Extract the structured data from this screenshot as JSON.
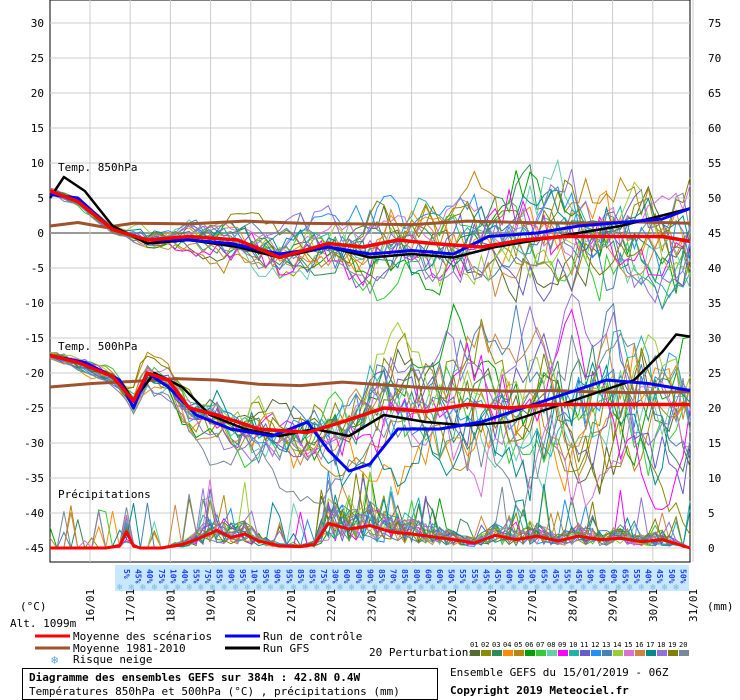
{
  "chart_data": {
    "type": "line",
    "title": "Diagramme des ensembles GEFS sur 384h : 42.8N 0.4W",
    "subtitle": "Températures 850hPa et 500hPa (°C) , précipitations (mm)",
    "run_info": "Ensemble GEFS du 15/01/2019 - 06Z",
    "copyright": "Copyright 2019 Meteociel.fr",
    "left_axis_unit": "(°C)",
    "right_axis_unit": "(mm)",
    "altitude": "Alt. 1099m",
    "left_ticks": [
      "30",
      "25",
      "20",
      "15",
      "10",
      "5",
      "0",
      "-5",
      "-10",
      "-15",
      "-20",
      "-25",
      "-30",
      "-35",
      "-40",
      "-45"
    ],
    "right_ticks": [
      "75",
      "70",
      "65",
      "60",
      "55",
      "50",
      "45",
      "40",
      "35",
      "30",
      "25",
      "20",
      "15",
      "10",
      "5",
      "0"
    ],
    "panel_labels": {
      "t850": "Temp. 850hPa",
      "t500": "Temp. 500hPa",
      "precip": "Précipitations"
    },
    "dates": [
      "16/01",
      "17/01",
      "18/01",
      "19/01",
      "20/01",
      "21/01",
      "22/01",
      "23/01",
      "24/01",
      "25/01",
      "26/01",
      "27/01",
      "28/01",
      "29/01",
      "30/01",
      "31/01"
    ],
    "snow_risk": [
      "5%",
      "45%",
      "40%",
      "75%",
      "10%",
      "40%",
      "55%",
      "75%",
      "85%",
      "90%",
      "95%",
      "10%",
      "95%",
      "90%",
      "95%",
      "85%",
      "85%",
      "75%",
      "30%",
      "60%",
      "90%",
      "90%",
      "85%",
      "70%",
      "85%",
      "80%",
      "60%",
      "60%",
      "50%",
      "55%",
      "55%",
      "45%",
      "45%",
      "60%",
      "50%",
      "50%",
      "65%",
      "45%",
      "55%",
      "45%",
      "50%",
      "60%",
      "60%",
      "65%",
      "55%",
      "40%",
      "45%",
      "50%",
      "50%"
    ],
    "legend": {
      "mean": "Moyenne des scénarios",
      "control": "Run de contrôle",
      "clim": "Moyenne 1981-2010",
      "gfs": "Run GFS",
      "snow": "Risque neige",
      "perturbations": "20 Perturbations",
      "pert_ids": [
        "01",
        "02",
        "03",
        "04",
        "05",
        "06",
        "07",
        "08",
        "09",
        "10",
        "11",
        "12",
        "13",
        "14",
        "15",
        "16",
        "17",
        "18",
        "19",
        "20"
      ]
    },
    "colors": {
      "mean": "#ff0000",
      "control": "#0000ff",
      "clim": "#a0522d",
      "gfs": "#000000",
      "snow": "#c8e8ff",
      "pert": [
        "#556b2f",
        "#8b8b00",
        "#2e8b57",
        "#ff8c00",
        "#b8860b",
        "#00a000",
        "#32cd32",
        "#66cdaa",
        "#ff00ff",
        "#20b2aa",
        "#6a5acd",
        "#1e90ff",
        "#4682b4",
        "#9acd32",
        "#da70d6",
        "#cd853f",
        "#008b8b",
        "#9370db",
        "#808000",
        "#778899"
      ]
    },
    "t850_mean": [
      [
        0,
        6
      ],
      [
        4,
        4.5
      ],
      [
        9,
        0.5
      ],
      [
        14,
        -1
      ],
      [
        20,
        -0.5
      ],
      [
        27,
        -1
      ],
      [
        33,
        -3.5
      ],
      [
        40,
        -1.5
      ],
      [
        45,
        -2
      ],
      [
        50,
        -1
      ],
      [
        55,
        -1.5
      ],
      [
        62,
        -2
      ],
      [
        68,
        -1
      ],
      [
        74,
        -0.5
      ],
      [
        80,
        -0.5
      ],
      [
        84,
        -0.5
      ],
      [
        88,
        -0.5
      ],
      [
        92,
        -1.2
      ]
    ],
    "t850_control": [
      [
        0,
        5.5
      ],
      [
        4,
        5
      ],
      [
        9,
        0.5
      ],
      [
        14,
        -1
      ],
      [
        20,
        -1
      ],
      [
        26,
        -1.5
      ],
      [
        33,
        -3
      ],
      [
        40,
        -2
      ],
      [
        46,
        -3
      ],
      [
        52,
        -2.5
      ],
      [
        58,
        -3
      ],
      [
        63,
        -0.5
      ],
      [
        70,
        0
      ],
      [
        76,
        1
      ],
      [
        82,
        1.5
      ],
      [
        88,
        2
      ],
      [
        92,
        3.5
      ]
    ],
    "t850_gfs": [
      [
        0,
        5
      ],
      [
        2,
        8
      ],
      [
        5,
        6
      ],
      [
        9,
        1
      ],
      [
        14,
        -1.5
      ],
      [
        20,
        -1
      ],
      [
        27,
        -2
      ],
      [
        33,
        -3.5
      ],
      [
        40,
        -2
      ],
      [
        46,
        -3.5
      ],
      [
        52,
        -3
      ],
      [
        58,
        -3.5
      ],
      [
        64,
        -2
      ],
      [
        70,
        -1
      ],
      [
        76,
        0
      ],
      [
        82,
        1
      ],
      [
        88,
        2.5
      ],
      [
        92,
        3.5
      ]
    ],
    "t850_clim": [
      [
        0,
        1
      ],
      [
        4,
        1.5
      ],
      [
        8,
        0.8
      ],
      [
        12,
        1.4
      ],
      [
        20,
        1.3
      ],
      [
        28,
        1.7
      ],
      [
        36,
        1.4
      ],
      [
        44,
        1.3
      ],
      [
        52,
        1.2
      ],
      [
        60,
        1.7
      ],
      [
        68,
        1.5
      ],
      [
        76,
        1.4
      ],
      [
        84,
        1.6
      ],
      [
        92,
        1.4
      ]
    ],
    "t500_mean": [
      [
        0,
        -17.5
      ],
      [
        4,
        -18.5
      ],
      [
        9,
        -20.5
      ],
      [
        12,
        -24
      ],
      [
        14,
        -20
      ],
      [
        17,
        -21
      ],
      [
        20,
        -25
      ],
      [
        24,
        -26
      ],
      [
        30,
        -28
      ],
      [
        37,
        -28.5
      ],
      [
        42,
        -27
      ],
      [
        48,
        -25
      ],
      [
        54,
        -25.5
      ],
      [
        60,
        -24.5
      ],
      [
        66,
        -25
      ],
      [
        72,
        -24.5
      ],
      [
        78,
        -24.5
      ],
      [
        84,
        -24.5
      ],
      [
        92,
        -24.5
      ]
    ],
    "t500_control": [
      [
        0,
        -17.5
      ],
      [
        5,
        -18.5
      ],
      [
        10,
        -21
      ],
      [
        12,
        -25
      ],
      [
        14,
        -20
      ],
      [
        17,
        -22
      ],
      [
        21,
        -26
      ],
      [
        26,
        -28
      ],
      [
        32,
        -29
      ],
      [
        37,
        -27
      ],
      [
        40,
        -31
      ],
      [
        43,
        -34
      ],
      [
        46,
        -33
      ],
      [
        50,
        -28
      ],
      [
        56,
        -28
      ],
      [
        62,
        -27
      ],
      [
        68,
        -25
      ],
      [
        74,
        -23
      ],
      [
        80,
        -21
      ],
      [
        86,
        -21.5
      ],
      [
        92,
        -22.5
      ]
    ],
    "t500_gfs": [
      [
        0,
        -17.5
      ],
      [
        5,
        -18.5
      ],
      [
        10,
        -21
      ],
      [
        12,
        -24
      ],
      [
        15,
        -20
      ],
      [
        19,
        -22
      ],
      [
        23,
        -26
      ],
      [
        28,
        -28
      ],
      [
        33,
        -29
      ],
      [
        38,
        -28
      ],
      [
        43,
        -29
      ],
      [
        48,
        -26
      ],
      [
        54,
        -27
      ],
      [
        60,
        -27.5
      ],
      [
        66,
        -27
      ],
      [
        72,
        -25
      ],
      [
        78,
        -23
      ],
      [
        84,
        -21
      ],
      [
        88,
        -17
      ],
      [
        90,
        -14.5
      ],
      [
        92,
        -14.8
      ]
    ],
    "t500_clim": [
      [
        0,
        -22
      ],
      [
        6,
        -21.5
      ],
      [
        12,
        -21.2
      ],
      [
        18,
        -20.8
      ],
      [
        24,
        -21
      ],
      [
        30,
        -21.6
      ],
      [
        36,
        -21.8
      ],
      [
        42,
        -21.3
      ],
      [
        48,
        -21.7
      ],
      [
        54,
        -22.1
      ],
      [
        60,
        -22.4
      ],
      [
        66,
        -22.6
      ],
      [
        72,
        -22.5
      ],
      [
        78,
        -22.7
      ],
      [
        84,
        -22.8
      ],
      [
        92,
        -22.7
      ]
    ],
    "precip_mean": [
      [
        0,
        0
      ],
      [
        8,
        0
      ],
      [
        10,
        0.3
      ],
      [
        11,
        2.3
      ],
      [
        12,
        0.3
      ],
      [
        13,
        0
      ],
      [
        16,
        0
      ],
      [
        19,
        0.5
      ],
      [
        21,
        1.2
      ],
      [
        24,
        2.5
      ],
      [
        26,
        1.5
      ],
      [
        28,
        2
      ],
      [
        30,
        1
      ],
      [
        33,
        0.3
      ],
      [
        36,
        0.2
      ],
      [
        38,
        0.5
      ],
      [
        40,
        3.5
      ],
      [
        43,
        2.7
      ],
      [
        46,
        3.2
      ],
      [
        49,
        2.3
      ],
      [
        52,
        2
      ],
      [
        55,
        1.6
      ],
      [
        58,
        1.2
      ],
      [
        61,
        0.7
      ],
      [
        64,
        1.8
      ],
      [
        67,
        1.2
      ],
      [
        70,
        1.7
      ],
      [
        73,
        1
      ],
      [
        76,
        1.7
      ],
      [
        79,
        1.2
      ],
      [
        82,
        1.4
      ],
      [
        85,
        0.9
      ],
      [
        88,
        1.2
      ],
      [
        92,
        0
      ]
    ]
  }
}
